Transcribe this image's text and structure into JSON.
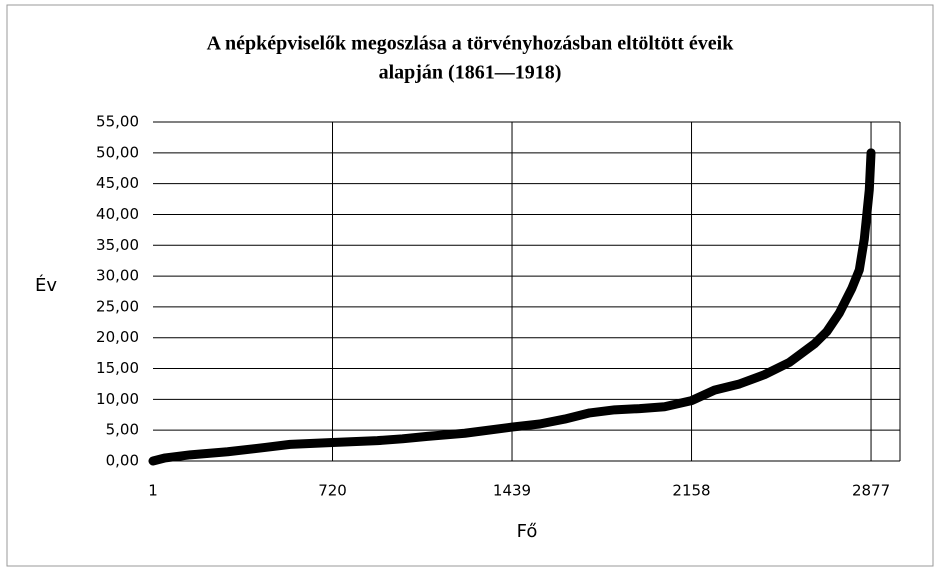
{
  "chart_data": {
    "type": "line",
    "title": [
      "A népképviselők megoszlása a törvényhozásban eltöltött éveik",
      "alapján (1861—1918)"
    ],
    "x_label": "Fő",
    "y_label": "Év",
    "x": [
      1,
      50,
      150,
      300,
      450,
      550,
      720,
      900,
      1000,
      1100,
      1250,
      1439,
      1550,
      1650,
      1750,
      1850,
      1950,
      2050,
      2158,
      2250,
      2350,
      2450,
      2550,
      2650,
      2700,
      2750,
      2800,
      2830,
      2850,
      2860,
      2870,
      2877
    ],
    "series": [
      {
        "name": "Év",
        "color": "#000000",
        "values": [
          0,
          0.5,
          1.0,
          1.5,
          2.2,
          2.7,
          3.0,
          3.3,
          3.6,
          4.0,
          4.5,
          5.5,
          6.0,
          6.8,
          7.8,
          8.3,
          8.5,
          8.8,
          9.8,
          11.5,
          12.5,
          14.0,
          16.0,
          19.0,
          21.0,
          24.0,
          28.0,
          31.0,
          36.0,
          40.0,
          44.0,
          50.0
        ]
      }
    ],
    "xlim": [
      1,
      2993
    ],
    "xticks": [
      1,
      720,
      1439,
      2158,
      2877
    ],
    "ylim": [
      0,
      55
    ],
    "yticks": [
      {
        "value": 0,
        "label": "0,00"
      },
      {
        "value": 5,
        "label": "5,00"
      },
      {
        "value": 10,
        "label": "10,00"
      },
      {
        "value": 15,
        "label": "15,00"
      },
      {
        "value": 20,
        "label": "20,00"
      },
      {
        "value": 25,
        "label": "25,00"
      },
      {
        "value": 30,
        "label": "30,00"
      },
      {
        "value": 35,
        "label": "35,00"
      },
      {
        "value": 40,
        "label": "40,00"
      },
      {
        "value": 45,
        "label": "45,00"
      },
      {
        "value": 50,
        "label": "50,00"
      },
      {
        "value": 55,
        "label": "55,00"
      }
    ],
    "grid": true
  }
}
